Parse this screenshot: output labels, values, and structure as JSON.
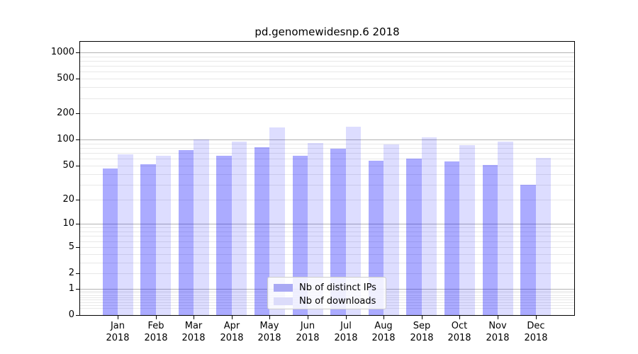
{
  "chart_data": {
    "type": "bar",
    "title": "pd.genomewidesnp.6 2018",
    "categories": [
      "Jan",
      "Feb",
      "Mar",
      "Apr",
      "May",
      "Jun",
      "Jul",
      "Aug",
      "Sep",
      "Oct",
      "Nov",
      "Dec"
    ],
    "x_sub_label": "2018",
    "series": [
      {
        "name": "Nb of distinct IPs",
        "values": [
          46,
          52,
          75,
          65,
          81,
          65,
          79,
          57,
          60,
          56,
          51,
          30
        ]
      },
      {
        "name": "Nb of downloads",
        "values": [
          68,
          65,
          101,
          95,
          138,
          91,
          141,
          88,
          106,
          86,
          94,
          61
        ]
      }
    ],
    "xlabel": "",
    "ylabel": "",
    "y_scale": "log10(value+1)",
    "y_tick_values": [
      0,
      1,
      2,
      5,
      10,
      20,
      50,
      100,
      200,
      500,
      1000
    ],
    "y_tick_labels": [
      "0",
      "1",
      "2",
      "5",
      "10",
      "20",
      "50",
      "100",
      "200",
      "500",
      "1000"
    ],
    "ylim": [
      0,
      1320
    ],
    "grid": "horizontal major at powers of 10, faint minor lines",
    "legend_position": "inside bottom-center"
  },
  "colors": {
    "ip_bar": "rgba(0, 0, 255, 0.33)",
    "downloads_bar": "rgba(0, 0, 255, 0.135)",
    "legend_ip_swatch": "#a9a9f4",
    "legend_downloads_swatch": "#dcdcfa",
    "major_grid": "#b3b3b3",
    "minor_grid": "#e8e8e8",
    "frame": "#000000",
    "text": "#000000"
  }
}
